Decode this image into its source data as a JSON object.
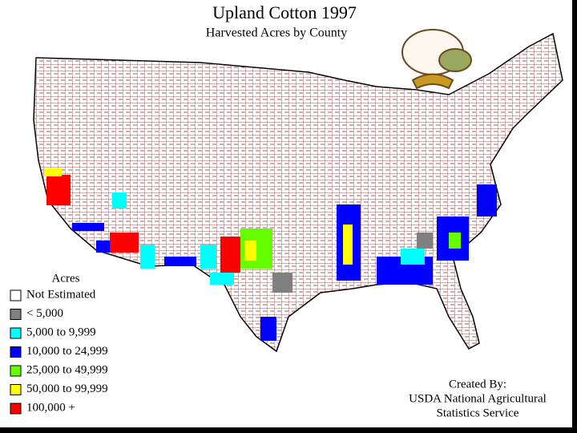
{
  "map": {
    "title": "Upland Cotton 1997",
    "subtitle": "Harvested Acres by County",
    "legend": {
      "title": "Acres",
      "items": [
        {
          "label": "Not Estimated",
          "color": "#ffffff"
        },
        {
          "label": "< 5,000",
          "color": "#808080"
        },
        {
          "label": "5,000 to 9,999",
          "color": "#00ffff"
        },
        {
          "label": "10,000 to 24,999",
          "color": "#0000ff"
        },
        {
          "label": "25,000 to 49,999",
          "color": "#66ff00"
        },
        {
          "label": "50,000 to 99,999",
          "color": "#ffff00"
        },
        {
          "label": "100,000 +",
          "color": "#ff0000"
        }
      ]
    },
    "credit": [
      "Created By:",
      "USDA National Agricultural",
      "Statistics Service"
    ]
  }
}
